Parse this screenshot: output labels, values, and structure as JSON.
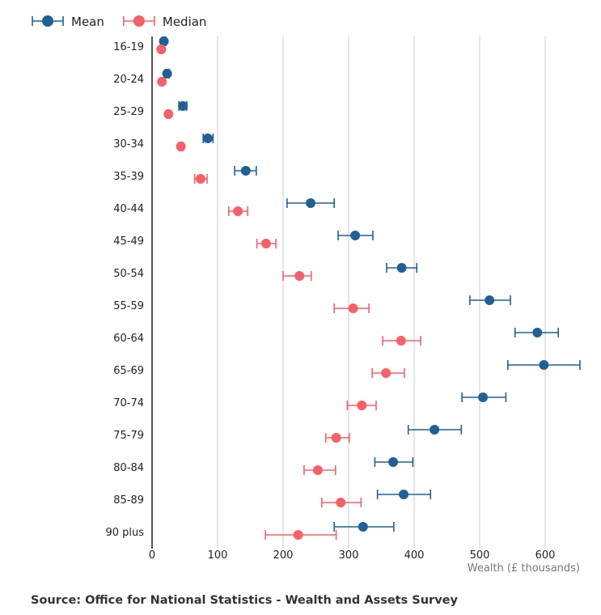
{
  "chart_data": {
    "type": "scatter",
    "subtype": "dot-plot with error bars (horizontal)",
    "categories": [
      "16-19",
      "20-24",
      "25-29",
      "30-34",
      "35-39",
      "40-44",
      "45-49",
      "50-54",
      "55-59",
      "60-64",
      "65-69",
      "70-74",
      "75-79",
      "80-84",
      "85-89",
      "90 plus"
    ],
    "series": [
      {
        "name": "Mean",
        "color": "#206095",
        "values": [
          18,
          23,
          47,
          85,
          143,
          242,
          310,
          381,
          515,
          588,
          598,
          505,
          431,
          368,
          384,
          322
        ],
        "lower": [
          16,
          20,
          41,
          78,
          126,
          206,
          284,
          358,
          485,
          554,
          543,
          473,
          391,
          340,
          344,
          278
        ],
        "upper": [
          21,
          26,
          53,
          93,
          159,
          278,
          337,
          404,
          547,
          620,
          653,
          540,
          472,
          398,
          425,
          369
        ]
      },
      {
        "name": "Median",
        "color": "#F66068",
        "values": [
          14,
          15,
          25,
          44,
          74,
          131,
          174,
          225,
          307,
          380,
          357,
          320,
          281,
          253,
          288,
          223
        ],
        "lower": [
          12,
          13,
          23,
          41,
          65,
          117,
          160,
          200,
          278,
          352,
          336,
          298,
          265,
          232,
          259,
          173
        ],
        "upper": [
          16,
          17,
          27,
          47,
          84,
          146,
          189,
          243,
          331,
          410,
          385,
          342,
          301,
          280,
          319,
          281
        ]
      }
    ],
    "xlabel": "Wealth (£ thousands)",
    "xlim": [
      0,
      650
    ],
    "xticks": [
      "0",
      "100",
      "200",
      "300",
      "400",
      "500",
      "600"
    ],
    "grid": "vertical",
    "legend": "top-left"
  },
  "source": "Source: Office for National Statistics - Wealth and Assets Survey"
}
